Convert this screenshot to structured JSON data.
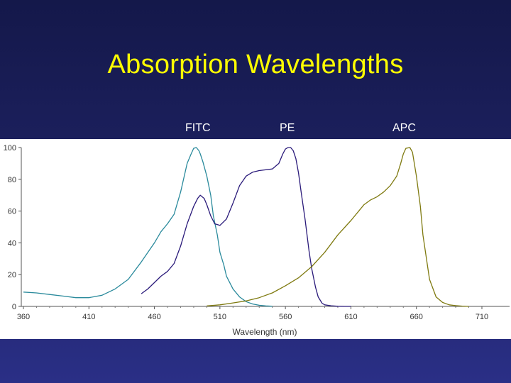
{
  "slide": {
    "title": "Absorption Wavelengths",
    "background_color": "#1d2160",
    "title_color": "#ffff00"
  },
  "chart_data": {
    "type": "line",
    "title": "",
    "xlabel": "Wavelength (nm)",
    "ylabel": "",
    "xlim": [
      360,
      720
    ],
    "ylim": [
      0,
      100
    ],
    "x_ticks": [
      360,
      410,
      460,
      510,
      560,
      610,
      660,
      710
    ],
    "y_ticks": [
      0,
      20,
      40,
      60,
      80,
      100
    ],
    "y_tick_labels": [
      "0",
      "20",
      "40",
      "60",
      "80",
      "100"
    ],
    "x_tick_labels": [
      "360",
      "410",
      "460",
      "510",
      "560",
      "610",
      "660",
      "710"
    ],
    "grid": false,
    "series": [
      {
        "name": "FITC",
        "color": "#2a8a9c",
        "x": [
          360,
          370,
          380,
          390,
          400,
          410,
          420,
          430,
          440,
          450,
          460,
          465,
          470,
          475,
          480,
          485,
          488,
          490,
          492,
          494,
          495,
          497,
          500,
          503,
          505,
          508,
          510,
          513,
          515,
          520,
          525,
          530,
          535,
          540,
          545,
          550
        ],
        "y": [
          9,
          8.5,
          7.5,
          6.5,
          5.5,
          5.5,
          7,
          11,
          17,
          28,
          40,
          47,
          52,
          58,
          72,
          90,
          96,
          99.5,
          100,
          98,
          96,
          91,
          82,
          70,
          57,
          45,
          34,
          26,
          19,
          11,
          6,
          3,
          1.5,
          0.7,
          0.3,
          0.1
        ]
      },
      {
        "name": "PE",
        "color": "#2a1a7a",
        "x": [
          450,
          455,
          460,
          465,
          470,
          475,
          480,
          485,
          490,
          493,
          495,
          498,
          500,
          503,
          506,
          510,
          515,
          520,
          525,
          530,
          535,
          540,
          545,
          550,
          555,
          558,
          560,
          562,
          564,
          566,
          568,
          570,
          572,
          575,
          578,
          580,
          583,
          585,
          588,
          590,
          595,
          600,
          605,
          610
        ],
        "y": [
          8,
          11,
          15,
          19,
          22,
          27,
          38,
          52,
          63,
          68,
          70,
          68,
          64,
          57,
          52,
          51,
          55,
          65,
          76,
          82,
          84.5,
          85.5,
          86,
          86.5,
          90,
          96,
          99,
          100,
          100,
          98,
          93,
          84,
          72,
          55,
          35,
          24,
          12,
          6,
          2,
          1,
          0.4,
          0.1,
          0,
          0
        ]
      },
      {
        "name": "APC",
        "color": "#7f7a10",
        "x": [
          500,
          510,
          520,
          530,
          540,
          550,
          560,
          570,
          580,
          590,
          600,
          610,
          620,
          625,
          630,
          635,
          640,
          645,
          648,
          650,
          652,
          655,
          657,
          660,
          663,
          665,
          670,
          675,
          680,
          685,
          690,
          695,
          700
        ],
        "y": [
          0.3,
          1,
          2.2,
          3.5,
          5.5,
          8.5,
          13,
          18,
          25,
          34,
          45,
          54,
          64,
          67,
          69,
          72,
          76,
          82,
          90,
          96,
          99.5,
          100,
          97,
          82,
          63,
          45,
          17,
          6,
          2.5,
          1,
          0.5,
          0.2,
          0
        ]
      }
    ]
  }
}
